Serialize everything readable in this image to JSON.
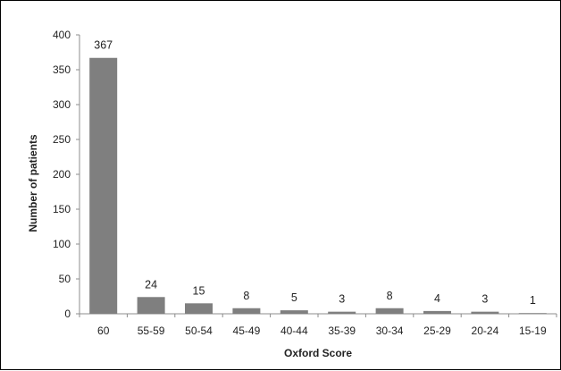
{
  "chart_data": {
    "type": "bar",
    "categories": [
      "60",
      "55-59",
      "50-54",
      "45-49",
      "40-44",
      "35-39",
      "30-34",
      "25-29",
      "20-24",
      "15-19"
    ],
    "values": [
      367,
      24,
      15,
      8,
      5,
      3,
      8,
      4,
      3,
      1
    ],
    "data_labels": [
      "367",
      "24",
      "15",
      "8",
      "5",
      "3",
      "8",
      "4",
      "3",
      "1"
    ],
    "xlabel": "Oxford Score",
    "ylabel": "Number of patients",
    "ylim": [
      0,
      400
    ],
    "yticks": [
      "0",
      "50",
      "100",
      "150",
      "200",
      "250",
      "300",
      "350",
      "400"
    ],
    "grid": false,
    "bar_color": "#7f7f7f"
  }
}
